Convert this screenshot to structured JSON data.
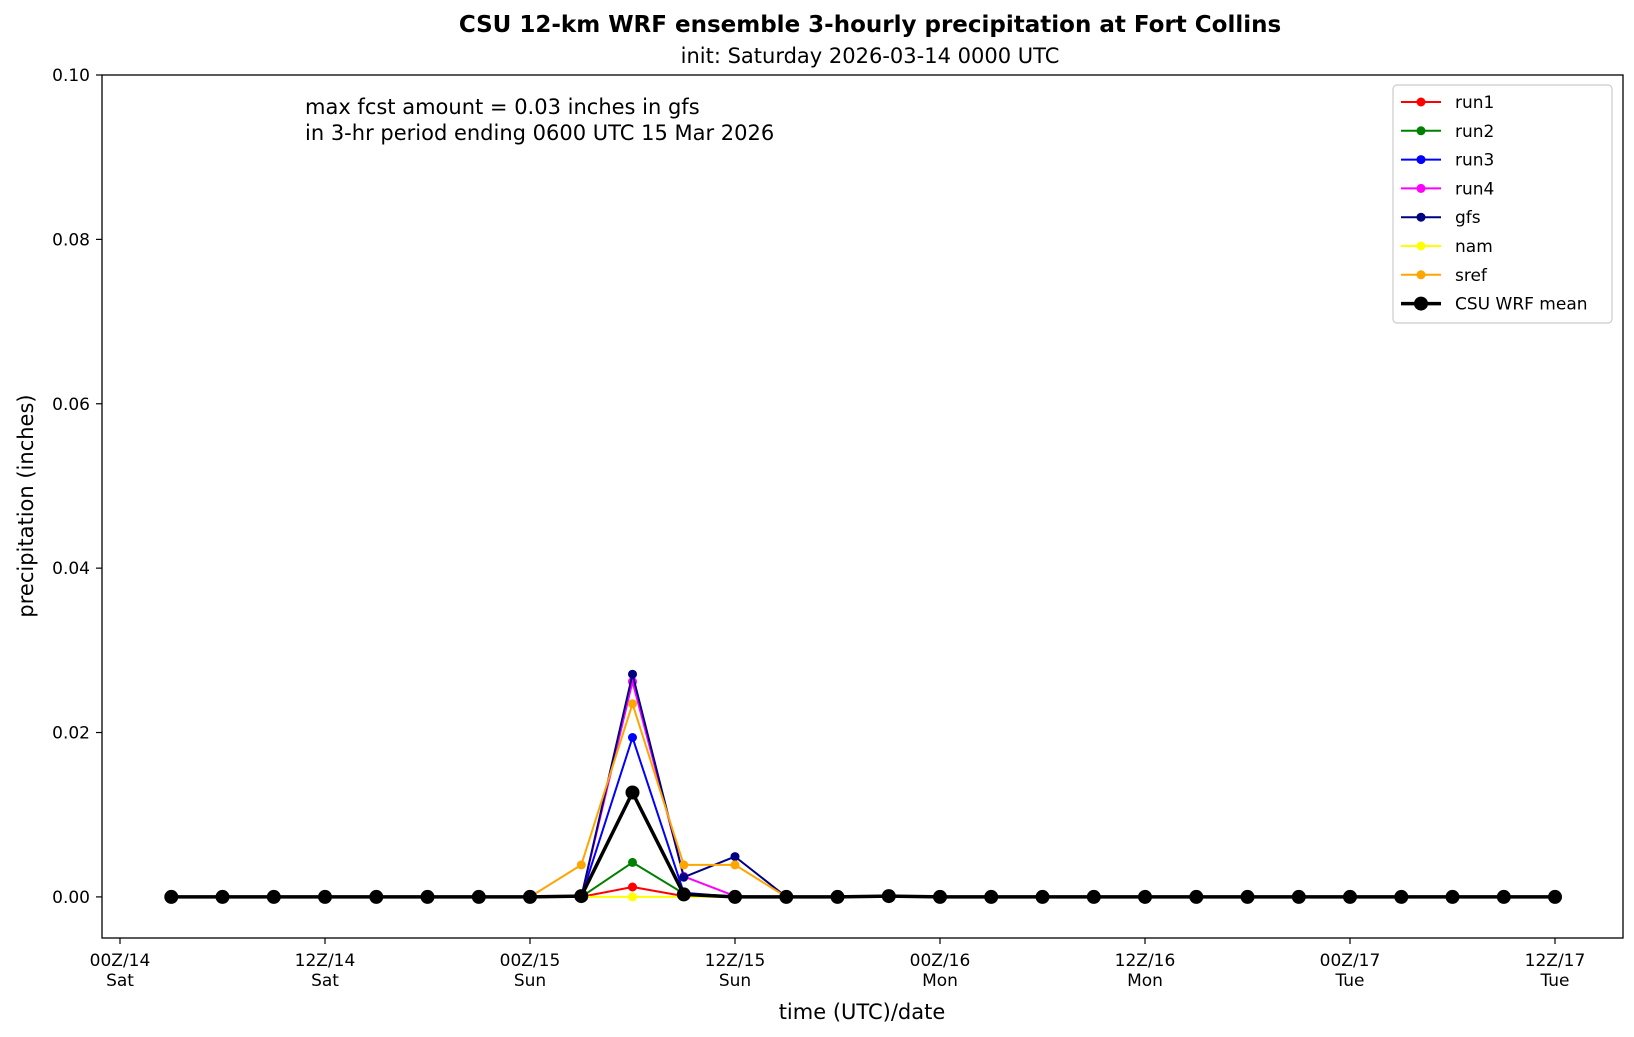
{
  "chart_data": {
    "type": "line",
    "title": "CSU 12-km WRF ensemble 3-hourly precipitation at Fort Collins",
    "subtitle": "init: Saturday 2026-03-14 0000 UTC",
    "xlabel": "time (UTC)/date",
    "ylabel": "precipitation (inches)",
    "x_unit": "hours since 00Z/14",
    "xlim": [
      0,
      84
    ],
    "ylim": [
      -0.005,
      0.1
    ],
    "x_ticks": [
      {
        "value": 0,
        "label1": "00Z/14",
        "label2": "Sat"
      },
      {
        "value": 12,
        "label1": "12Z/14",
        "label2": "Sat"
      },
      {
        "value": 24,
        "label1": "00Z/15",
        "label2": "Sun"
      },
      {
        "value": 36,
        "label1": "12Z/15",
        "label2": "Sun"
      },
      {
        "value": 48,
        "label1": "00Z/16",
        "label2": "Mon"
      },
      {
        "value": 60,
        "label1": "12Z/16",
        "label2": "Mon"
      },
      {
        "value": 72,
        "label1": "00Z/17",
        "label2": "Tue"
      },
      {
        "value": 84,
        "label1": "12Z/17",
        "label2": "Tue"
      }
    ],
    "y_ticks": [
      {
        "value": 0.0,
        "label": "0.00"
      },
      {
        "value": 0.02,
        "label": "0.02"
      },
      {
        "value": 0.04,
        "label": "0.04"
      },
      {
        "value": 0.06,
        "label": "0.06"
      },
      {
        "value": 0.08,
        "label": "0.08"
      },
      {
        "value": 0.1,
        "label": "0.10"
      }
    ],
    "annotation_lines": [
      "max fcst amount = 0.03 inches in gfs",
      "in 3-hr period ending 0600 UTC 15 Mar 2026"
    ],
    "legend_position": "upper right",
    "grid": false,
    "x": [
      3,
      6,
      9,
      12,
      15,
      18,
      21,
      24,
      27,
      30,
      33,
      36,
      39,
      42,
      45,
      48,
      51,
      54,
      57,
      60,
      63,
      66,
      69,
      72,
      75,
      78,
      81,
      84
    ],
    "series": [
      {
        "name": "run1",
        "color": "#ff0000",
        "width": 2,
        "marker": 4.5,
        "values": [
          0,
          0,
          0,
          0,
          0,
          0,
          0,
          0,
          0,
          0.0012,
          0.0001,
          0,
          0,
          0,
          0,
          0,
          0,
          0,
          0,
          0,
          0,
          0,
          0,
          0,
          0,
          0,
          0,
          0
        ]
      },
      {
        "name": "run2",
        "color": "#008000",
        "width": 2,
        "marker": 4.5,
        "values": [
          0,
          0,
          0,
          0,
          0,
          0,
          0,
          0,
          0,
          0.0042,
          0.0004,
          0,
          0,
          0,
          0,
          0,
          0,
          0,
          0,
          0,
          0,
          0,
          0,
          0,
          0,
          0,
          0,
          0
        ]
      },
      {
        "name": "run3",
        "color": "#0000ff",
        "width": 2,
        "marker": 4.5,
        "values": [
          0,
          0,
          0,
          0,
          0,
          0,
          0,
          0,
          0,
          0.0194,
          0.0005,
          0,
          0,
          0,
          0,
          0,
          0,
          0,
          0,
          0,
          0,
          0,
          0,
          0,
          0,
          0,
          0,
          0
        ]
      },
      {
        "name": "run4",
        "color": "#ff00ff",
        "width": 2,
        "marker": 4.5,
        "values": [
          0,
          0,
          0,
          0,
          0,
          0,
          0,
          0,
          0,
          0.0262,
          0.0025,
          0.0001,
          0,
          0,
          0,
          0,
          0,
          0,
          0,
          0,
          0,
          0,
          0,
          0,
          0,
          0,
          0,
          0
        ]
      },
      {
        "name": "gfs",
        "color": "#000080",
        "width": 2,
        "marker": 4.5,
        "values": [
          0,
          0,
          0,
          0,
          0,
          0,
          0,
          0,
          0,
          0.0271,
          0.0024,
          0.0049,
          0,
          0,
          0,
          0,
          0,
          0,
          0,
          0,
          0,
          0,
          0,
          0,
          0,
          0,
          0,
          0
        ]
      },
      {
        "name": "nam",
        "color": "#ffff00",
        "width": 2,
        "marker": 4.5,
        "values": [
          0,
          0,
          0,
          0,
          0,
          0,
          0,
          0,
          0,
          0,
          0,
          0,
          0,
          0,
          0,
          0,
          0,
          0,
          0,
          0,
          0,
          0,
          0,
          0,
          0,
          0,
          0,
          0
        ]
      },
      {
        "name": "sref",
        "color": "#ffa500",
        "width": 2,
        "marker": 4.5,
        "values": [
          0,
          0,
          0,
          0,
          0,
          0,
          0,
          0,
          0.0039,
          0.0235,
          0.0039,
          0.0039,
          0,
          0,
          0.0001,
          0,
          0,
          0,
          0,
          0,
          0,
          0,
          0,
          0,
          0,
          0,
          0,
          0
        ]
      },
      {
        "name": "CSU WRF mean",
        "color": "#000000",
        "width": 3.5,
        "marker": 7,
        "values": [
          0,
          0,
          0,
          0,
          0,
          0,
          0,
          0,
          0.0001,
          0.0127,
          0.0003,
          0,
          0,
          0,
          0.0001,
          0,
          0,
          0,
          0,
          0,
          0,
          0,
          0,
          0,
          0,
          0,
          0,
          0
        ]
      }
    ]
  }
}
